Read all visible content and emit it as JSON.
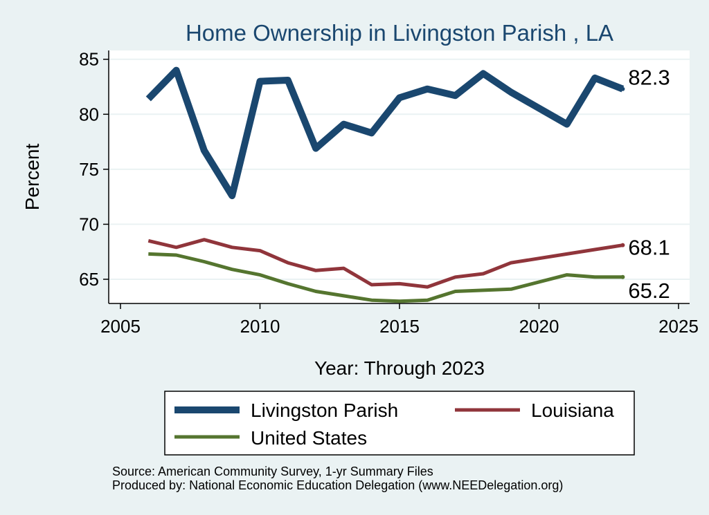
{
  "chart_data": {
    "type": "line",
    "title": "Home Ownership in Livingston Parish , LA",
    "xlabel": "Year: Through 2023",
    "ylabel": "Percent",
    "xlim": [
      2005,
      2025
    ],
    "ylim": [
      62.8,
      85.8
    ],
    "x_ticks": [
      2005,
      2010,
      2015,
      2020,
      2025
    ],
    "y_ticks": [
      65,
      70,
      75,
      80,
      85
    ],
    "grid": true,
    "legend_position": "bottom",
    "x": [
      2006,
      2007,
      2008,
      2009,
      2010,
      2011,
      2012,
      2013,
      2014,
      2015,
      2016,
      2017,
      2018,
      2019,
      2021,
      2022,
      2023
    ],
    "series": [
      {
        "name": "Livingston Parish",
        "color": "#1a476f",
        "values": [
          81.4,
          84.0,
          76.7,
          72.6,
          83.0,
          83.1,
          76.9,
          79.1,
          78.3,
          81.5,
          82.3,
          81.7,
          83.7,
          82.0,
          79.1,
          83.3,
          82.3
        ],
        "end_label": "82.3"
      },
      {
        "name": "Louisiana",
        "color": "#90353b",
        "values": [
          68.5,
          67.9,
          68.6,
          67.9,
          67.6,
          66.5,
          65.8,
          66.0,
          64.5,
          64.6,
          64.3,
          65.2,
          65.5,
          66.5,
          67.3,
          67.7,
          68.1
        ],
        "end_label": "68.1"
      },
      {
        "name": "United States",
        "color": "#55752f",
        "values": [
          67.3,
          67.2,
          66.6,
          65.9,
          65.4,
          64.6,
          63.9,
          63.5,
          63.1,
          63.0,
          63.1,
          63.9,
          64.0,
          64.1,
          65.4,
          65.2,
          65.2
        ],
        "end_label": "65.2"
      }
    ]
  },
  "notes": {
    "source": "Source: American Community Survey, 1-yr Summary Files",
    "produced": "Produced by: National Economic Education Delegation (www.NEEDelegation.org)"
  }
}
